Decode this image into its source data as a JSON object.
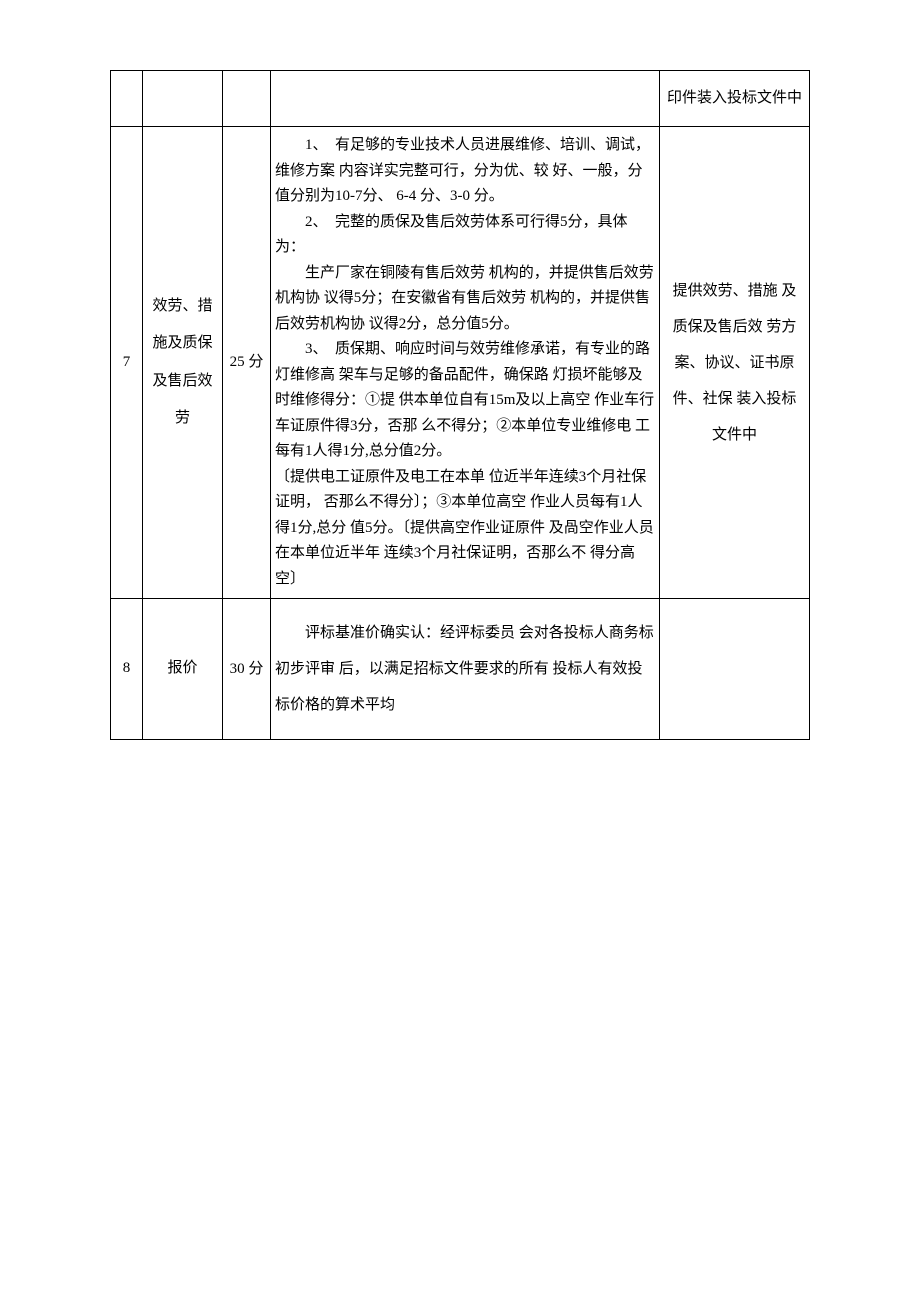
{
  "table": {
    "rows": [
      {
        "idx": "",
        "name": "",
        "score": "",
        "desc": "",
        "note": "印件装入投标文件中"
      },
      {
        "idx": "7",
        "name": "效劳、措施及质保及售后效劳",
        "score": "25 分",
        "desc_p1": "1、　有足够的专业技术人员进展维修、培训、调试，维修方案 内容详实完整可行，分为优、较 好、一般，分值分别为10-7分、 6-4 分、3-0 分。",
        "desc_p2": "2、　完整的质保及售后效劳体系可行得5分，具体为：",
        "desc_p3": "生产厂家在铜陵有售后效劳 机构的，并提供售后效劳机构协 议得5分；在安徽省有售后效劳 机构的，并提供售后效劳机构协 议得2分，总分值5分。",
        "desc_p4": "3、　质保期、响应时间与效劳维修承诺，有专业的路灯维修高 架车与足够的备品配件，确保路 灯损坏能够及时维修得分：①提 供本单位自有15m及以上高空 作业车行车证原件得3分，否那 么不得分；②本单位专业维修电 工每有1人得1分,总分值2分。",
        "desc_p5": "〔提供电工证原件及电工在本单 位近半年连续3个月社保证明， 否那么不得分〕；③本单位高空 作业人员每有1人得1分,总分 值5分。〔提供高空作业证原件 及咼空作业人员在本单位近半年 连续3个月社保证明，否那么不 得分高空〕",
        "note": "提供效劳、措施 及质保及售后效 劳方案、协议、证书原件、社保 装入投标文件中"
      },
      {
        "idx": "8",
        "name": "报价",
        "score": "30 分",
        "desc": "评标基准价确实认：经评标委员 会对各投标人商务标初步评审 后，以满足招标文件要求的所有 投标人有效投标价格的算术平均",
        "note": ""
      }
    ]
  }
}
